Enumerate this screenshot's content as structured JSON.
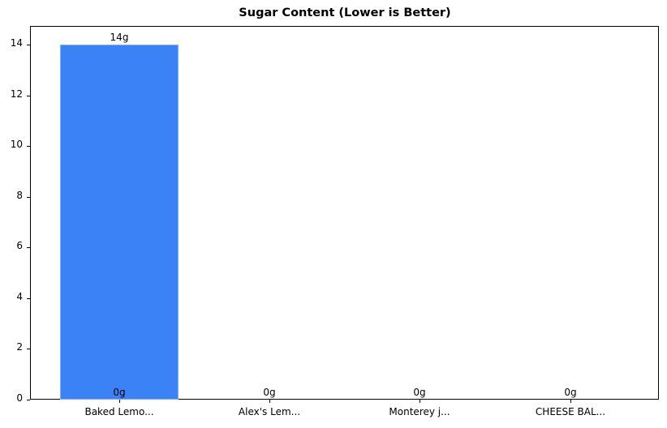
{
  "chart_data": {
    "type": "bar",
    "title": "Sugar Content (Lower is Better)",
    "xlabel": "",
    "ylabel": "",
    "categories": [
      "Baked Lemo...",
      "Alex's Lem...",
      "Monterey j...",
      "CHEESE BAL..."
    ],
    "values": [
      14,
      0,
      0,
      0
    ],
    "value_labels": [
      "14g",
      "0g",
      "0g",
      "0g"
    ],
    "base_labels": [
      "0g",
      "0g",
      "0g",
      "0g"
    ],
    "ylim": [
      0,
      14.7
    ],
    "yticks": [
      "0",
      "2",
      "4",
      "6",
      "8",
      "10",
      "12",
      "14"
    ],
    "grid": false,
    "legend": null,
    "bar_color": "#3b82f6"
  }
}
